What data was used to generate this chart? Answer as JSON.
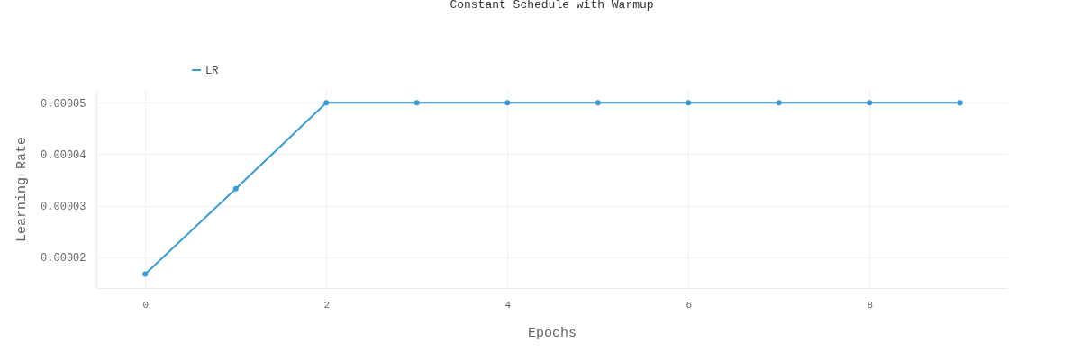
{
  "chart_data": {
    "type": "line",
    "title": "Constant Schedule with Warmup",
    "xlabel": "Epochs",
    "ylabel": "Learning Rate",
    "x": [
      0,
      1,
      2,
      3,
      4,
      5,
      6,
      7,
      8,
      9
    ],
    "series": [
      {
        "name": "LR",
        "color": "#3d9ad1",
        "values": [
          1.67e-05,
          3.33e-05,
          5e-05,
          5e-05,
          5e-05,
          5e-05,
          5e-05,
          5e-05,
          5e-05,
          5e-05
        ]
      }
    ],
    "xlim": [
      -0.54,
      9.52
    ],
    "xticks": [
      0,
      2,
      4,
      6,
      8
    ],
    "ylim": [
      1.4e-05,
      5.25e-05
    ],
    "yticks": [
      {
        "value": 2e-05,
        "label": "0.00002"
      },
      {
        "value": 3e-05,
        "label": "0.00003"
      },
      {
        "value": 4e-05,
        "label": "0.00004"
      },
      {
        "value": 5e-05,
        "label": "0.00005"
      }
    ],
    "grid": true,
    "legend": "top left",
    "marker": "circle",
    "line_style": "solid"
  }
}
